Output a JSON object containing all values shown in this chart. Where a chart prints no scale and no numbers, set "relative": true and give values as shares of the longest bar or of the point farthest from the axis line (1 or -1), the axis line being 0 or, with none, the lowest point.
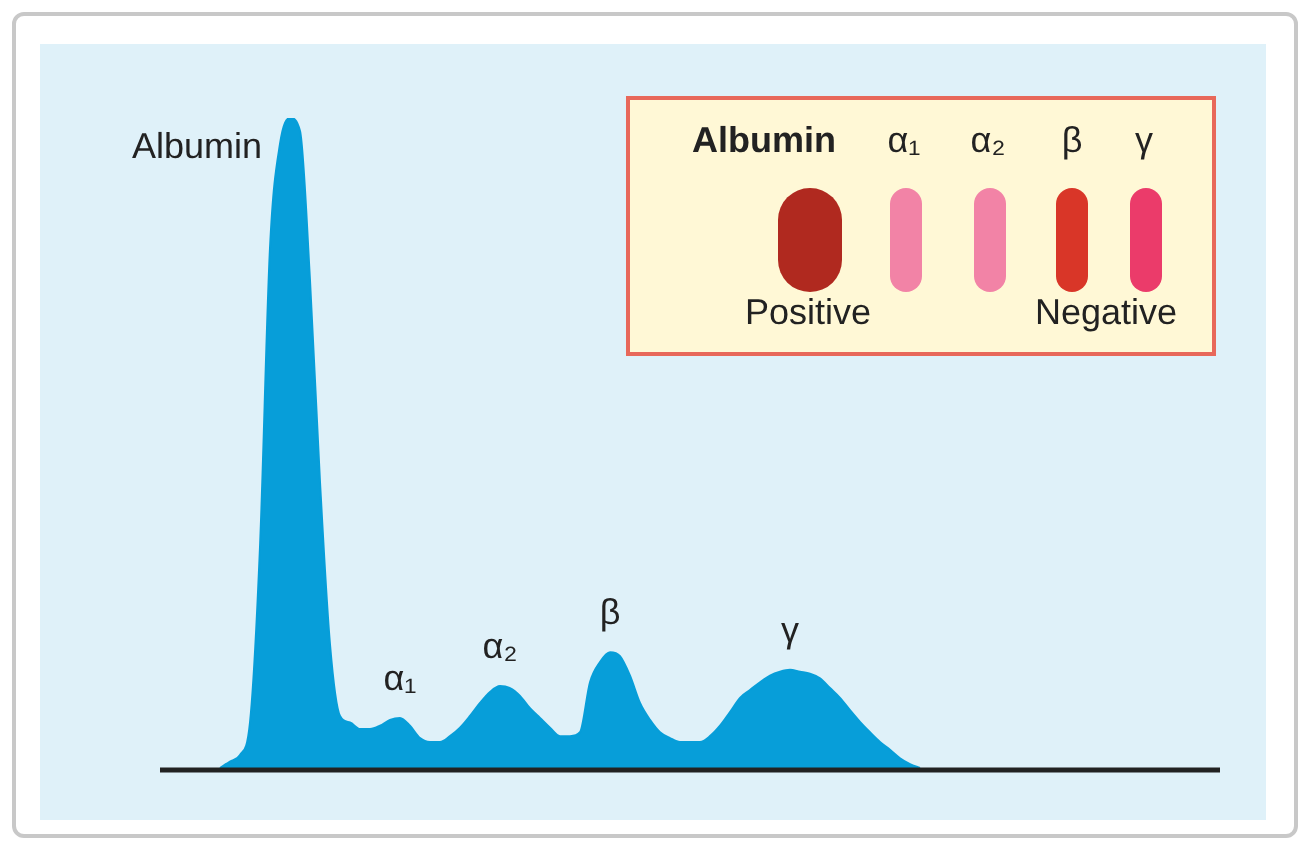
{
  "chart_data": [
    {
      "type": "area",
      "relative": true,
      "color": "#079ed9",
      "tick_labels": false,
      "legend": false,
      "categories": [
        null,
        null,
        null,
        null,
        null,
        null,
        null,
        null,
        null,
        null,
        null,
        null,
        null,
        null,
        null,
        null,
        null,
        null,
        null,
        null,
        null,
        null,
        null,
        null,
        null,
        null,
        null,
        null,
        null,
        null,
        null,
        null,
        null,
        null,
        null,
        null,
        null,
        null,
        null,
        null,
        null,
        null,
        null,
        null,
        null,
        null,
        null,
        null,
        null,
        null,
        null,
        null,
        null,
        null,
        null,
        null,
        null,
        null,
        null,
        null,
        null,
        null,
        null,
        null,
        null,
        null,
        null,
        null,
        null,
        null,
        null
      ],
      "values": [
        0,
        0.01,
        0.02,
        0.07,
        0.34,
        0.8,
        0.96,
        1,
        0.98,
        0.75,
        0.44,
        0.19,
        0.08,
        0.07,
        0.06,
        0.06,
        0.065,
        0.074,
        0.077,
        0.065,
        0.046,
        0.04,
        0.04,
        0.049,
        0.062,
        0.08,
        0.1,
        0.117,
        0.126,
        0.123,
        0.111,
        0.092,
        0.077,
        0.062,
        0.049,
        0.049,
        0.055,
        0.132,
        0.163,
        0.178,
        0.172,
        0.142,
        0.1,
        0.074,
        0.055,
        0.046,
        0.04,
        0.04,
        0.04,
        0.049,
        0.065,
        0.086,
        0.108,
        0.12,
        0.132,
        0.142,
        0.148,
        0.151,
        0.148,
        0.145,
        0.138,
        0.123,
        0.108,
        0.089,
        0.071,
        0.055,
        0.04,
        0.028,
        0.015,
        0.006,
        0
      ],
      "annotations": [
        "Albumin",
        "α₁",
        "α₂",
        "β",
        "γ"
      ]
    },
    {
      "type": "other",
      "annotations": [
        "Albumin",
        "α₁",
        "α₂",
        "β",
        "γ",
        "Positive",
        "Negative"
      ]
    }
  ]
}
